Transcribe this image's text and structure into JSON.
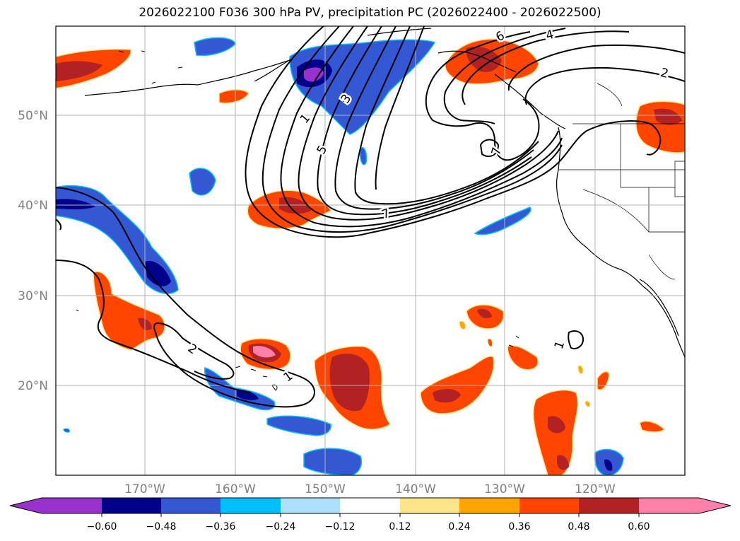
{
  "title": "2026022100 F036 300 hPa PV, precipitation PC (2026022400 - 2026022500)",
  "colors": {
    "purple": "#9932cc",
    "navy": "#00008b",
    "royal_blue": "#3458d4",
    "deep_sky_blue": "#00bfff",
    "light_sky_blue": "#ade0fa",
    "white": "#ffffff",
    "khaki": "#fde68a",
    "orange": "#ffa500",
    "orange_red": "#ff4500",
    "firebrick": "#b22222",
    "hot_pink": "#ff80a8",
    "grid": "#b0b0b0",
    "contour": "#000000"
  },
  "map": {
    "lat_labels": [
      "50°N",
      "40°N",
      "30°N",
      "20°N"
    ],
    "lon_labels": [
      "170°W",
      "160°W",
      "150°W",
      "140°W",
      "130°W",
      "120°W"
    ]
  },
  "contour_labels": [
    "1",
    "3",
    "5",
    "6",
    "4",
    "2",
    "7",
    "7",
    "2",
    "1",
    "1"
  ],
  "colorbar": {
    "tick_labels": [
      "−0.60",
      "−0.48",
      "−0.36",
      "−0.24",
      "−0.12",
      "0.12",
      "0.24",
      "0.36",
      "0.48",
      "0.60"
    ]
  }
}
